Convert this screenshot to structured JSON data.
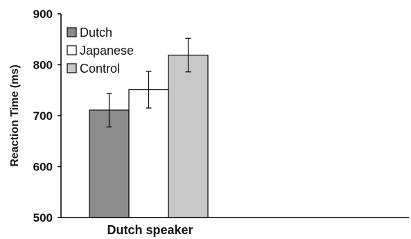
{
  "chart_data": {
    "type": "bar",
    "title": "",
    "xlabel": "",
    "ylabel": "Reaction Time (ms)",
    "ylim": [
      500,
      900
    ],
    "yticks": [
      500,
      600,
      700,
      800,
      900
    ],
    "categories": [
      "Dutch speaker"
    ],
    "series": [
      {
        "name": "Dutch",
        "values": [
          711
        ],
        "error": [
          33
        ],
        "color": "#8c8c8c"
      },
      {
        "name": "Japanese",
        "values": [
          751
        ],
        "error": [
          36
        ],
        "color": "#ffffff"
      },
      {
        "name": "Control",
        "values": [
          819
        ],
        "error": [
          33
        ],
        "color": "#c8c8c8"
      }
    ],
    "legend_position": "top-left",
    "grid": false
  }
}
